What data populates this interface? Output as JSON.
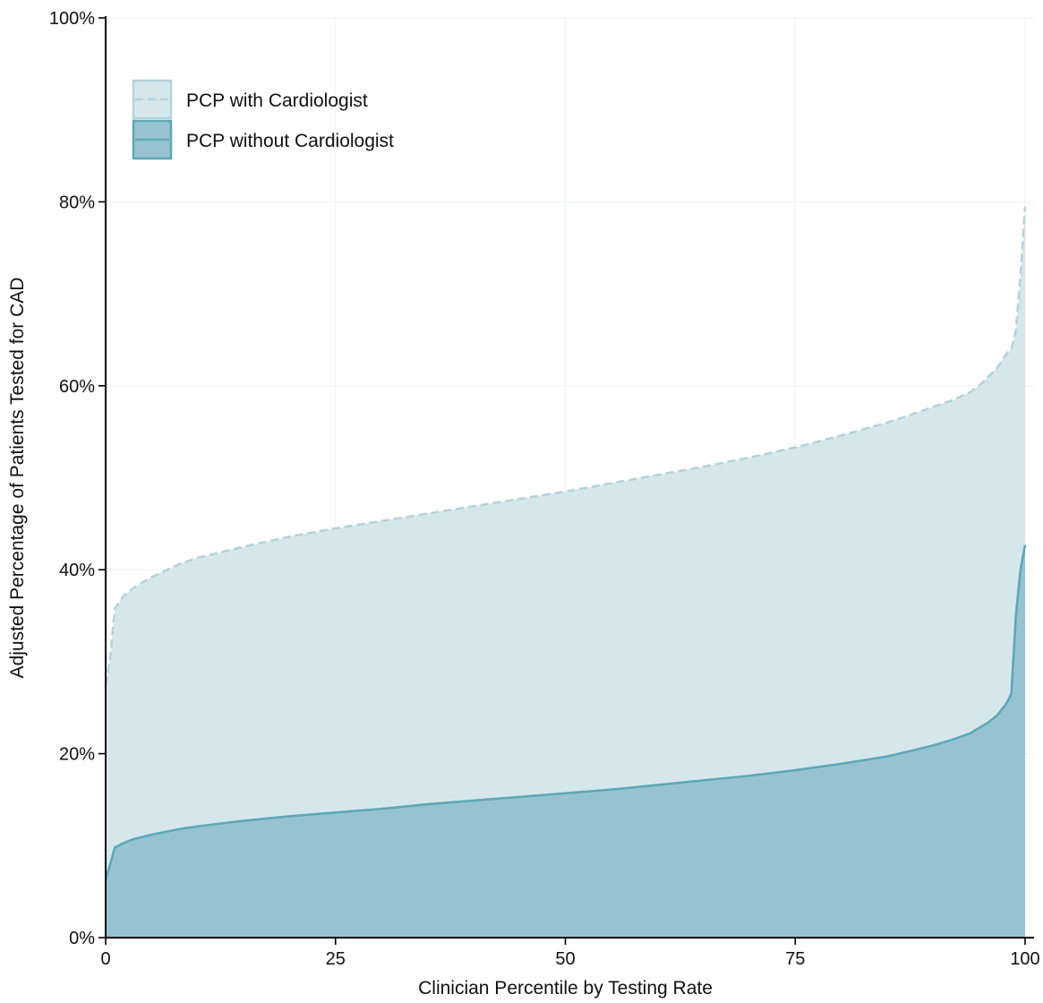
{
  "chart_data": {
    "type": "area",
    "title": "",
    "xlabel": "Clinician Percentile by Testing Rate",
    "ylabel": "Adjusted Percentage of Patients Tested for CAD",
    "xlim": [
      0,
      100
    ],
    "ylim": [
      0,
      100
    ],
    "x_ticks": [
      0,
      25,
      50,
      75,
      100
    ],
    "x_tick_labels": [
      "0",
      "25",
      "50",
      "75",
      "100"
    ],
    "y_ticks": [
      0,
      20,
      40,
      60,
      80,
      100
    ],
    "y_tick_labels": [
      "0%",
      "20%",
      "40%",
      "60%",
      "80%",
      "100%"
    ],
    "grid": true,
    "legend_position": "top-left",
    "x": [
      0,
      0.5,
      1,
      2,
      3,
      5,
      8,
      10,
      15,
      20,
      25,
      30,
      35,
      40,
      45,
      50,
      55,
      60,
      65,
      70,
      75,
      80,
      85,
      88,
      90,
      92,
      94,
      95,
      96,
      97,
      98,
      98.5,
      99,
      99.5,
      100
    ],
    "series": [
      {
        "name": "PCP with Cardiologist",
        "line_style": "dashed",
        "fill": "#d6e7ec",
        "line": "#b3d3db",
        "values": [
          27.5,
          30.5,
          35.8,
          37.2,
          38.0,
          39.2,
          40.6,
          41.3,
          42.5,
          43.6,
          44.5,
          45.3,
          46.1,
          46.9,
          47.7,
          48.5,
          49.4,
          50.3,
          51.2,
          52.2,
          53.3,
          54.6,
          56.0,
          57.0,
          57.7,
          58.4,
          59.3,
          60.0,
          61.0,
          62.0,
          63.5,
          64.0,
          66.0,
          72.0,
          79.5
        ]
      },
      {
        "name": "PCP without Cardiologist",
        "line_style": "solid",
        "fill": "#97c3d0",
        "line": "#5ca8b8",
        "values": [
          6.3,
          8.0,
          9.8,
          10.3,
          10.7,
          11.2,
          11.8,
          12.1,
          12.7,
          13.2,
          13.6,
          14.0,
          14.5,
          14.9,
          15.3,
          15.7,
          16.1,
          16.6,
          17.1,
          17.6,
          18.2,
          18.9,
          19.7,
          20.4,
          20.9,
          21.5,
          22.2,
          22.8,
          23.4,
          24.2,
          25.5,
          26.5,
          35.0,
          40.0,
          42.7
        ]
      }
    ]
  }
}
